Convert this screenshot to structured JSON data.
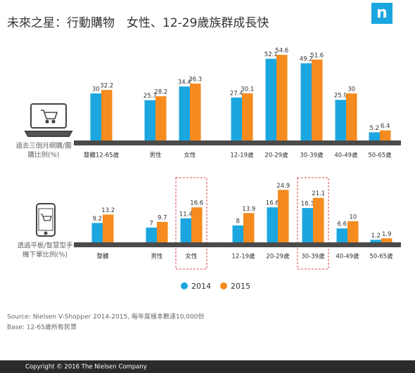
{
  "chart_data": {
    "type": "bar",
    "title": "未來之星：行動購物　女性、12-29歲族群成長快",
    "logo": "n",
    "series": [
      {
        "name": "2014",
        "color": "#1ba6df"
      },
      {
        "name": "2015",
        "color": "#f68b1f"
      }
    ],
    "panels": [
      {
        "ylabel": [
          "過去三個月網購/團",
          "購比例(%)"
        ],
        "categories": [
          "整體12-65歲",
          "男性",
          "女性",
          "12-19歲",
          "20-29歲",
          "30-39歲",
          "40-49歲",
          "50-65歲"
        ],
        "ylim": [
          0,
          60
        ],
        "series": [
          {
            "values": [
              30,
              25.7,
              34.4,
              27.4,
              52.1,
              49.2,
              25.9,
              5.2
            ]
          },
          {
            "values": [
              32.2,
              28.2,
              36.3,
              30.1,
              54.6,
              51.6,
              30,
              6.4
            ]
          }
        ]
      },
      {
        "ylabel": [
          "透過平板/智慧型手",
          "機下單比例(%)"
        ],
        "categories": [
          "整體",
          "男性",
          "女性",
          "12-19歲",
          "20-29歲",
          "30-39歲",
          "40-49歲",
          "50-65歲"
        ],
        "ylim": [
          0,
          30
        ],
        "highlight": [
          2,
          5
        ],
        "series": [
          {
            "values": [
              9.2,
              7,
              11.4,
              8,
              16.6,
              16.3,
              6.6,
              1.2
            ]
          },
          {
            "values": [
              13.2,
              9.7,
              16.6,
              13.9,
              24.9,
              21.1,
              10,
              1.9
            ]
          }
        ]
      }
    ],
    "source": [
      "Source: Nielsen V-Shopper 2014-2015, 每年度樣本數達10,000份",
      "Base: 12-65歲所有民眾"
    ],
    "footer": "Copyright © 2016 The Nielsen Company"
  }
}
